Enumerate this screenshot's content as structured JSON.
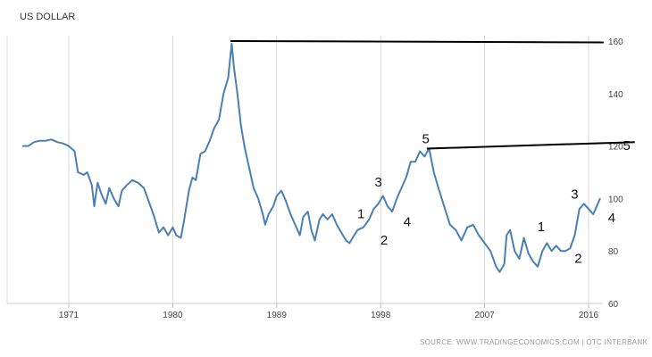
{
  "chart_data": {
    "type": "line",
    "title": "US DOLLAR",
    "source": "SOURCE: WWW.TRADINGECONOMICS.COM | OTC INTERBANK",
    "x_ticks": [
      {
        "label": "1971",
        "x": 1971
      },
      {
        "label": "1980",
        "x": 1980
      },
      {
        "label": "1989",
        "x": 1989
      },
      {
        "label": "1998",
        "x": 1998
      },
      {
        "label": "2007",
        "x": 2007
      },
      {
        "label": "2016",
        "x": 2016
      }
    ],
    "y_ticks": [
      {
        "label": "60",
        "y": 60
      },
      {
        "label": "80",
        "y": 80
      },
      {
        "label": "100",
        "y": 100
      },
      {
        "label": "120",
        "y": 120
      },
      {
        "label": "140",
        "y": 140
      },
      {
        "label": "160",
        "y": 160
      }
    ],
    "xlim": [
      1967,
      2017.5
    ],
    "ylim": [
      58,
      162
    ],
    "grid": "vertical",
    "colors": {
      "series": "#4a7fb5",
      "grid": "#d9d9d9",
      "annotation_line": "#000000"
    },
    "series": [
      {
        "points": [
          [
            1967.0,
            120.0
          ],
          [
            1967.5,
            120.0
          ],
          [
            1968.0,
            121.5
          ],
          [
            1968.5,
            122.0
          ],
          [
            1969.0,
            122.0
          ],
          [
            1969.5,
            122.5
          ],
          [
            1970.0,
            121.5
          ],
          [
            1970.5,
            121.0
          ],
          [
            1971.0,
            120.0
          ],
          [
            1971.5,
            118.0
          ],
          [
            1971.8,
            110.0
          ],
          [
            1972.3,
            109.0
          ],
          [
            1972.6,
            110.0
          ],
          [
            1973.0,
            105.0
          ],
          [
            1973.2,
            97.0
          ],
          [
            1973.5,
            106.0
          ],
          [
            1973.8,
            102.0
          ],
          [
            1974.2,
            98.0
          ],
          [
            1974.5,
            104.0
          ],
          [
            1974.9,
            100.0
          ],
          [
            1975.3,
            97.0
          ],
          [
            1975.6,
            103.0
          ],
          [
            1976.0,
            105.0
          ],
          [
            1976.5,
            107.0
          ],
          [
            1977.0,
            106.0
          ],
          [
            1977.5,
            104.0
          ],
          [
            1978.0,
            98.0
          ],
          [
            1978.4,
            93.0
          ],
          [
            1978.8,
            87.0
          ],
          [
            1979.2,
            89.0
          ],
          [
            1979.6,
            86.0
          ],
          [
            1980.0,
            89.0
          ],
          [
            1980.3,
            86.0
          ],
          [
            1980.7,
            85.0
          ],
          [
            1981.0,
            92.0
          ],
          [
            1981.4,
            103.0
          ],
          [
            1981.7,
            108.0
          ],
          [
            1982.0,
            107.0
          ],
          [
            1982.4,
            117.0
          ],
          [
            1982.8,
            118.0
          ],
          [
            1983.2,
            122.0
          ],
          [
            1983.6,
            127.0
          ],
          [
            1984.0,
            130.0
          ],
          [
            1984.4,
            140.0
          ],
          [
            1984.8,
            146.0
          ],
          [
            1985.1,
            159.0
          ],
          [
            1985.3,
            150.0
          ],
          [
            1985.6,
            140.0
          ],
          [
            1985.9,
            128.0
          ],
          [
            1986.2,
            120.0
          ],
          [
            1986.6,
            112.0
          ],
          [
            1987.0,
            104.0
          ],
          [
            1987.4,
            100.0
          ],
          [
            1987.8,
            94.0
          ],
          [
            1988.0,
            90.0
          ],
          [
            1988.3,
            94.0
          ],
          [
            1988.7,
            97.0
          ],
          [
            1989.0,
            101.0
          ],
          [
            1989.4,
            103.0
          ],
          [
            1989.8,
            99.0
          ],
          [
            1990.2,
            94.0
          ],
          [
            1990.6,
            90.0
          ],
          [
            1991.0,
            86.0
          ],
          [
            1991.3,
            93.0
          ],
          [
            1991.7,
            95.0
          ],
          [
            1992.0,
            88.0
          ],
          [
            1992.3,
            84.0
          ],
          [
            1992.7,
            92.0
          ],
          [
            1993.0,
            94.0
          ],
          [
            1993.4,
            92.0
          ],
          [
            1993.8,
            94.0
          ],
          [
            1994.2,
            90.0
          ],
          [
            1994.6,
            87.0
          ],
          [
            1995.0,
            84.0
          ],
          [
            1995.3,
            83.0
          ],
          [
            1995.7,
            86.0
          ],
          [
            1996.0,
            88.0
          ],
          [
            1996.5,
            89.0
          ],
          [
            1997.0,
            92.0
          ],
          [
            1997.4,
            96.0
          ],
          [
            1997.8,
            98.0
          ],
          [
            1998.2,
            101.0
          ],
          [
            1998.6,
            97.0
          ],
          [
            1999.0,
            95.0
          ],
          [
            1999.4,
            100.0
          ],
          [
            1999.8,
            104.0
          ],
          [
            2000.2,
            108.0
          ],
          [
            2000.6,
            114.0
          ],
          [
            2001.0,
            114.0
          ],
          [
            2001.4,
            118.0
          ],
          [
            2001.8,
            116.0
          ],
          [
            2002.2,
            119.0
          ],
          [
            2002.6,
            110.0
          ],
          [
            2003.0,
            104.0
          ],
          [
            2003.5,
            97.0
          ],
          [
            2004.0,
            90.0
          ],
          [
            2004.5,
            88.0
          ],
          [
            2005.0,
            84.0
          ],
          [
            2005.5,
            89.0
          ],
          [
            2006.0,
            90.0
          ],
          [
            2006.5,
            86.0
          ],
          [
            2007.0,
            83.0
          ],
          [
            2007.5,
            80.0
          ],
          [
            2008.0,
            74.0
          ],
          [
            2008.3,
            72.0
          ],
          [
            2008.7,
            75.0
          ],
          [
            2008.9,
            86.0
          ],
          [
            2009.2,
            88.0
          ],
          [
            2009.6,
            80.0
          ],
          [
            2010.0,
            77.0
          ],
          [
            2010.4,
            85.0
          ],
          [
            2010.8,
            79.0
          ],
          [
            2011.2,
            76.0
          ],
          [
            2011.6,
            74.0
          ],
          [
            2012.0,
            80.0
          ],
          [
            2012.4,
            83.0
          ],
          [
            2012.8,
            80.0
          ],
          [
            2013.2,
            82.0
          ],
          [
            2013.6,
            80.0
          ],
          [
            2014.0,
            80.0
          ],
          [
            2014.4,
            81.0
          ],
          [
            2014.8,
            86.0
          ],
          [
            2015.2,
            96.0
          ],
          [
            2015.6,
            98.0
          ],
          [
            2016.0,
            96.0
          ],
          [
            2016.4,
            94.0
          ],
          [
            2016.8,
            98.0
          ],
          [
            2017.0,
            100.0
          ]
        ]
      }
    ],
    "resistance_lines": [
      {
        "from": [
          1985.0,
          160.0
        ],
        "to": [
          2017.3,
          159.5
        ]
      },
      {
        "from": [
          2002.0,
          119.0
        ],
        "to": [
          2020.0,
          121.5
        ]
      }
    ],
    "wave_labels": [
      {
        "text": "5",
        "x": 2001.9,
        "y": 121.0
      },
      {
        "text": "5",
        "x": 2019.3,
        "y": 118.5
      },
      {
        "text": "3",
        "x": 1997.8,
        "y": 104.5
      },
      {
        "text": "1",
        "x": 1996.3,
        "y": 92.5
      },
      {
        "text": "4",
        "x": 2000.3,
        "y": 89.5
      },
      {
        "text": "2",
        "x": 1998.3,
        "y": 82.5
      },
      {
        "text": "3",
        "x": 2014.8,
        "y": 100.0
      },
      {
        "text": "4",
        "x": 2018.0,
        "y": 91.0
      },
      {
        "text": "1",
        "x": 2011.9,
        "y": 87.5
      },
      {
        "text": "2",
        "x": 2015.1,
        "y": 75.5
      }
    ]
  }
}
